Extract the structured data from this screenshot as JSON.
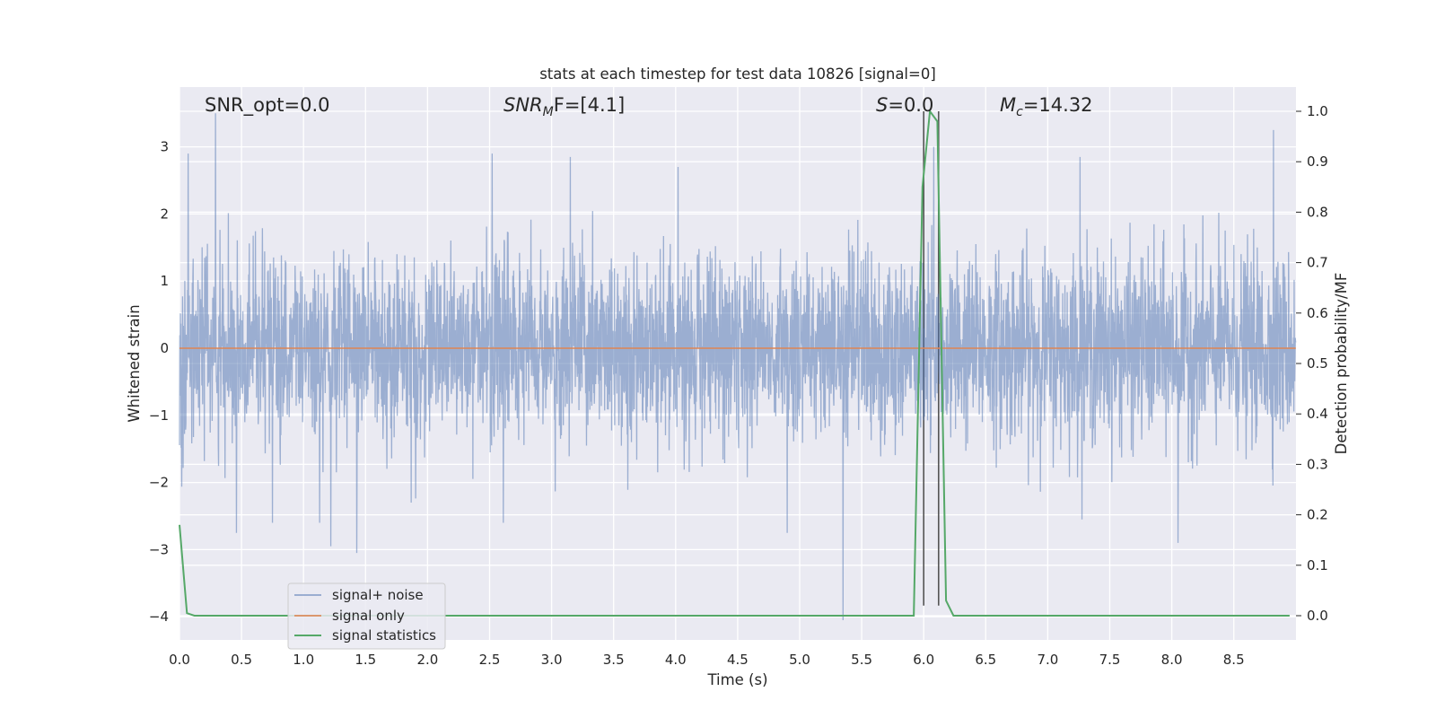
{
  "chart_data": {
    "type": "line",
    "title": "stats at each timestep for test data 10826 [signal=0]",
    "xlabel": "Time (s)",
    "ylabel": "Whitened strain",
    "y2label": "Detection probability/MF",
    "xlim": [
      0.0,
      9.0
    ],
    "ylim": [
      -4.35,
      3.9
    ],
    "y2lim": [
      -0.05,
      1.05
    ],
    "xticks": [
      "0.0",
      "0.5",
      "1.0",
      "1.5",
      "2.0",
      "2.5",
      "3.0",
      "3.5",
      "4.0",
      "4.5",
      "5.0",
      "5.5",
      "6.0",
      "6.5",
      "7.0",
      "7.5",
      "8.0",
      "8.5"
    ],
    "yticks": [
      "3",
      "2",
      "1",
      "0",
      "−1",
      "−2",
      "−3",
      "−4"
    ],
    "y2ticks": [
      "1.0",
      "0.9",
      "0.8",
      "0.7",
      "0.6",
      "0.5",
      "0.4",
      "0.3",
      "0.2",
      "0.1",
      "0.0"
    ],
    "grid": true,
    "legend_position": "lower-left",
    "annotations": {
      "snr_opt": "SNR_opt=0.0",
      "snr_mf_base": "SNR",
      "snr_mf_sub": "M",
      "snr_mf_rest": "F=[4.1]",
      "s_italic": "S",
      "s_rest": "=0.0",
      "mc_italic": "M",
      "mc_sub": "c",
      "mc_rest": "=14.32"
    },
    "vertical_lines_x": [
      6.0,
      6.12
    ],
    "series": [
      {
        "name": "signal+ noise",
        "color": "#4c72b0",
        "axis": "left",
        "description_of_values": "whitened noise, roughly within ±2 with spikes",
        "spikes": [
          {
            "x": 0.07,
            "y": 2.9
          },
          {
            "x": 0.29,
            "y": 3.5
          },
          {
            "x": 0.46,
            "y": -2.75
          },
          {
            "x": 0.75,
            "y": -2.6
          },
          {
            "x": 1.13,
            "y": -2.6
          },
          {
            "x": 1.22,
            "y": -2.95
          },
          {
            "x": 1.43,
            "y": -3.05
          },
          {
            "x": 2.52,
            "y": 2.9
          },
          {
            "x": 2.61,
            "y": -2.6
          },
          {
            "x": 3.15,
            "y": 2.85
          },
          {
            "x": 4.02,
            "y": 2.7
          },
          {
            "x": 4.9,
            "y": -2.75
          },
          {
            "x": 5.35,
            "y": -4.05
          },
          {
            "x": 6.08,
            "y": 3.0
          },
          {
            "x": 7.26,
            "y": 2.85
          },
          {
            "x": 8.05,
            "y": -2.9
          },
          {
            "x": 8.82,
            "y": 3.25
          }
        ]
      },
      {
        "name": "signal only",
        "color": "#dd8452",
        "axis": "left",
        "x": [
          0.0,
          9.0
        ],
        "y": [
          0.0,
          0.0
        ]
      },
      {
        "name": "signal statistics",
        "color": "#55a868",
        "axis": "right",
        "x": [
          0.0,
          0.06,
          0.12,
          5.92,
          5.99,
          6.05,
          6.11,
          6.18,
          6.24,
          8.95
        ],
        "y": [
          0.18,
          0.005,
          0.0,
          0.0,
          0.85,
          1.0,
          0.98,
          0.03,
          0.0,
          0.0
        ]
      }
    ]
  }
}
